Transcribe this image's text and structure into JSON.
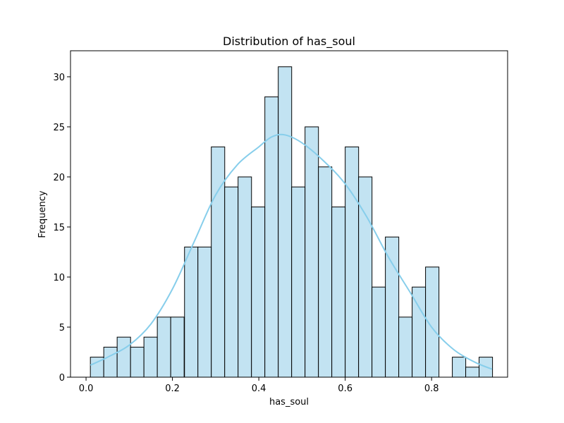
{
  "chart_data": {
    "type": "bar",
    "title": "Distribution of has_soul",
    "xlabel": "has_soul",
    "ylabel": "Frequency",
    "xlim": [
      -0.036,
      0.976
    ],
    "ylim": [
      0,
      32.6
    ],
    "bin_width": 0.03107,
    "bins": [
      {
        "x0": 0.01,
        "count": 2
      },
      {
        "x0": 0.041,
        "count": 3
      },
      {
        "x0": 0.072,
        "count": 4
      },
      {
        "x0": 0.103,
        "count": 3
      },
      {
        "x0": 0.134,
        "count": 4
      },
      {
        "x0": 0.165,
        "count": 6
      },
      {
        "x0": 0.196,
        "count": 6
      },
      {
        "x0": 0.228,
        "count": 13
      },
      {
        "x0": 0.259,
        "count": 13
      },
      {
        "x0": 0.29,
        "count": 23
      },
      {
        "x0": 0.321,
        "count": 19
      },
      {
        "x0": 0.352,
        "count": 20
      },
      {
        "x0": 0.383,
        "count": 17
      },
      {
        "x0": 0.414,
        "count": 28
      },
      {
        "x0": 0.445,
        "count": 31
      },
      {
        "x0": 0.476,
        "count": 19
      },
      {
        "x0": 0.507,
        "count": 25
      },
      {
        "x0": 0.538,
        "count": 21
      },
      {
        "x0": 0.569,
        "count": 17
      },
      {
        "x0": 0.6,
        "count": 23
      },
      {
        "x0": 0.631,
        "count": 20
      },
      {
        "x0": 0.662,
        "count": 9
      },
      {
        "x0": 0.693,
        "count": 14
      },
      {
        "x0": 0.724,
        "count": 6
      },
      {
        "x0": 0.755,
        "count": 9
      },
      {
        "x0": 0.786,
        "count": 11
      },
      {
        "x0": 0.817,
        "count": 0
      },
      {
        "x0": 0.848,
        "count": 2
      },
      {
        "x0": 0.879,
        "count": 1
      },
      {
        "x0": 0.91,
        "count": 2
      }
    ],
    "kde": {
      "x": [
        0.01,
        0.05,
        0.1,
        0.15,
        0.2,
        0.25,
        0.3,
        0.35,
        0.4,
        0.43,
        0.46,
        0.5,
        0.55,
        0.6,
        0.65,
        0.7,
        0.75,
        0.8,
        0.85,
        0.9,
        0.94
      ],
      "y": [
        1.2,
        2.0,
        3.2,
        5.3,
        8.8,
        13.5,
        18.2,
        21.2,
        23.0,
        24.0,
        24.2,
        23.4,
        21.6,
        19.3,
        16.0,
        12.0,
        8.5,
        5.0,
        2.8,
        1.5,
        0.8
      ]
    },
    "x_ticks": [
      0.0,
      0.2,
      0.4,
      0.6,
      0.8
    ],
    "x_tick_labels": [
      "0.0",
      "0.2",
      "0.4",
      "0.6",
      "0.8"
    ],
    "y_ticks": [
      0,
      5,
      10,
      15,
      20,
      25,
      30
    ],
    "y_tick_labels": [
      "0",
      "5",
      "10",
      "15",
      "20",
      "25",
      "30"
    ],
    "grid": false,
    "legend": "none",
    "colors": {
      "bar_fill": "#c2e3f2",
      "bar_edge": "#000000",
      "kde_line": "#87ceeb"
    }
  }
}
